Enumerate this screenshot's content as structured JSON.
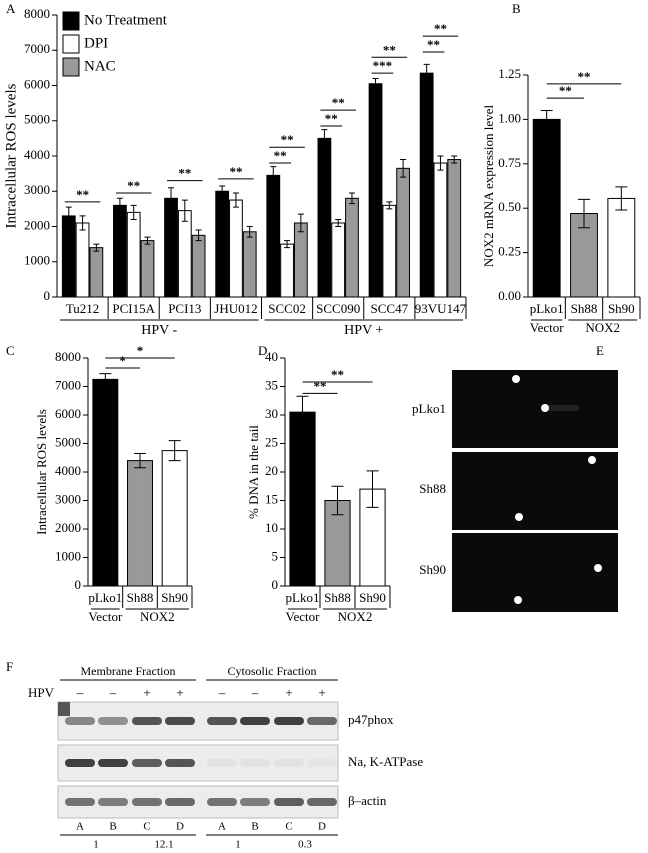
{
  "panel_labels": [
    "A",
    "B",
    "C",
    "D",
    "E",
    "F"
  ],
  "chart_data": [
    {
      "type": "grouped_bar",
      "ylabel": "Intracellular ROS levels",
      "categories": [
        "Tu212",
        "PCI15A",
        "PCI13",
        "JHU012",
        "SCC02",
        "SCC090",
        "SCC47",
        "93VU147"
      ],
      "series": [
        {
          "name": "No Treatment",
          "color": "#000000",
          "values": [
            2300,
            2600,
            2800,
            3000,
            3450,
            4500,
            6050,
            6350
          ],
          "errors": [
            250,
            200,
            300,
            150,
            250,
            250,
            150,
            250
          ]
        },
        {
          "name": "DPI",
          "color": "#ffffff",
          "values": [
            2100,
            2400,
            2450,
            2750,
            1500,
            2100,
            2600,
            3800
          ],
          "errors": [
            200,
            200,
            300,
            200,
            100,
            100,
            100,
            200
          ]
        },
        {
          "name": "NAC",
          "color": "#999999",
          "values": [
            1400,
            1600,
            1750,
            1850,
            2100,
            2800,
            3650,
            3900
          ],
          "errors": [
            100,
            100,
            150,
            150,
            250,
            150,
            250,
            100
          ]
        }
      ],
      "ylim": [
        0,
        8000
      ],
      "yticks": [
        0,
        1000,
        2000,
        3000,
        4000,
        5000,
        6000,
        7000,
        8000
      ],
      "groups": [
        "HPV -",
        "HPV +"
      ],
      "annotations": [
        "**",
        "**",
        "**",
        "**",
        "**",
        "**",
        "**",
        "**",
        "***",
        "**",
        "**",
        "**"
      ]
    },
    {
      "type": "bar",
      "ylabel": "NOX2 mRNA expression level",
      "categories": [
        "pLko1",
        "Sh88",
        "Sh90"
      ],
      "values": [
        1.0,
        0.47,
        0.555
      ],
      "errors": [
        0.05,
        0.08,
        0.065
      ],
      "colors": [
        "#000000",
        "#999999",
        "#ffffff"
      ],
      "ylim": [
        0,
        1.25
      ],
      "yticks": [
        {
          "value": 0,
          "label": "0.00"
        },
        {
          "value": 0.25,
          "label": "0.25"
        },
        {
          "value": 0.5,
          "label": "0.50"
        },
        {
          "value": 0.75,
          "label": "0.75"
        },
        {
          "value": 1,
          "label": "1.00"
        },
        {
          "value": 1.25,
          "label": "1.25"
        }
      ],
      "groups": [
        "Vector",
        "NOX2"
      ],
      "annotations": [
        "**",
        "**"
      ]
    },
    {
      "type": "bar",
      "ylabel": "Intracellular ROS levels",
      "categories": [
        "pLko1",
        "Sh88",
        "Sh90"
      ],
      "values": [
        7250,
        4400,
        4750
      ],
      "errors": [
        200,
        250,
        350
      ],
      "colors": [
        "#000000",
        "#999999",
        "#ffffff"
      ],
      "ylim": [
        0,
        8000
      ],
      "yticks": [
        0,
        1000,
        2000,
        3000,
        4000,
        5000,
        6000,
        7000,
        8000
      ],
      "groups": [
        "Vector",
        "NOX2"
      ],
      "annotations": [
        "*",
        "*"
      ]
    },
    {
      "type": "bar",
      "ylabel": "% DNA in the tail",
      "categories": [
        "pLko1",
        "Sh88",
        "Sh90"
      ],
      "values": [
        30.5,
        15,
        17
      ],
      "errors": [
        2.8,
        2.5,
        3.2
      ],
      "colors": [
        "#000000",
        "#999999",
        "#ffffff"
      ],
      "ylim": [
        0,
        40
      ],
      "yticks": [
        0,
        5,
        10,
        15,
        20,
        25,
        30,
        35,
        40
      ],
      "groups": [
        "Vector",
        "NOX2"
      ],
      "annotations": [
        "**",
        "**"
      ]
    }
  ],
  "comet": {
    "labels": [
      "pLko1",
      "Sh88",
      "Sh90"
    ]
  },
  "blot": {
    "fractions": [
      "Membrane Fraction",
      "Cytosolic Fraction"
    ],
    "hpv_label": "HPV",
    "hpv": [
      "–",
      "–",
      "+",
      "+",
      "–",
      "–",
      "+",
      "+"
    ],
    "bands": [
      "p47phox",
      "Na, K-ATPase",
      "β–actin"
    ],
    "lanes": [
      "A",
      "B",
      "C",
      "D",
      "A",
      "B",
      "C",
      "D"
    ],
    "ratios": [
      "1",
      "12.1",
      "1",
      "0.3"
    ]
  }
}
